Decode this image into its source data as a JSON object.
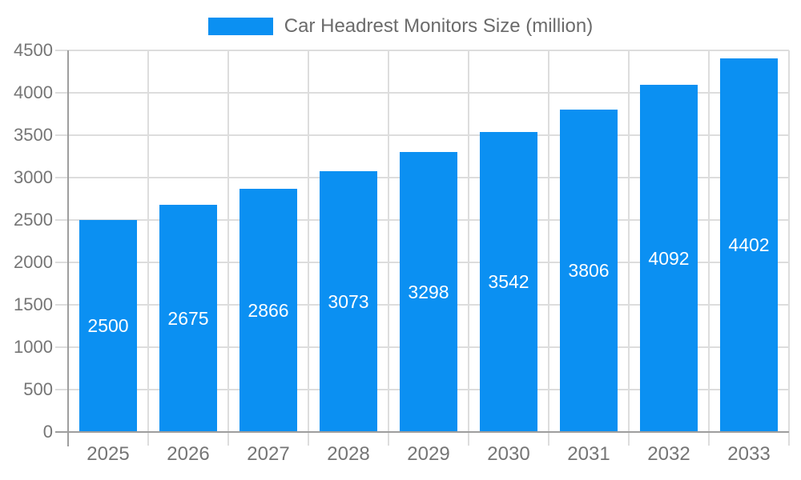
{
  "chart_data": {
    "type": "bar",
    "title": "Car Headrest Monitors Size (million)",
    "categories": [
      "2025",
      "2026",
      "2027",
      "2028",
      "2029",
      "2030",
      "2031",
      "2032",
      "2033"
    ],
    "values": [
      2500,
      2675,
      2866,
      3073,
      3298,
      3542,
      3806,
      4092,
      4402
    ],
    "yticks": [
      0,
      500,
      1000,
      1500,
      2000,
      2500,
      3000,
      3500,
      4000,
      4500
    ],
    "ylim": [
      0,
      4500
    ],
    "ytick_step": 500,
    "xlabel": "",
    "ylabel": "",
    "legend_position": "top-center",
    "grid": true,
    "value_label_position": "inside-center",
    "colors": {
      "bar": "#0b90f2",
      "value_label": "#ffffff",
      "axis_line": "#9e9e9e",
      "grid_line": "#dddddd",
      "tick_label": "#757575",
      "legend_text": "#6b6b6b",
      "background": "#ffffff"
    }
  }
}
